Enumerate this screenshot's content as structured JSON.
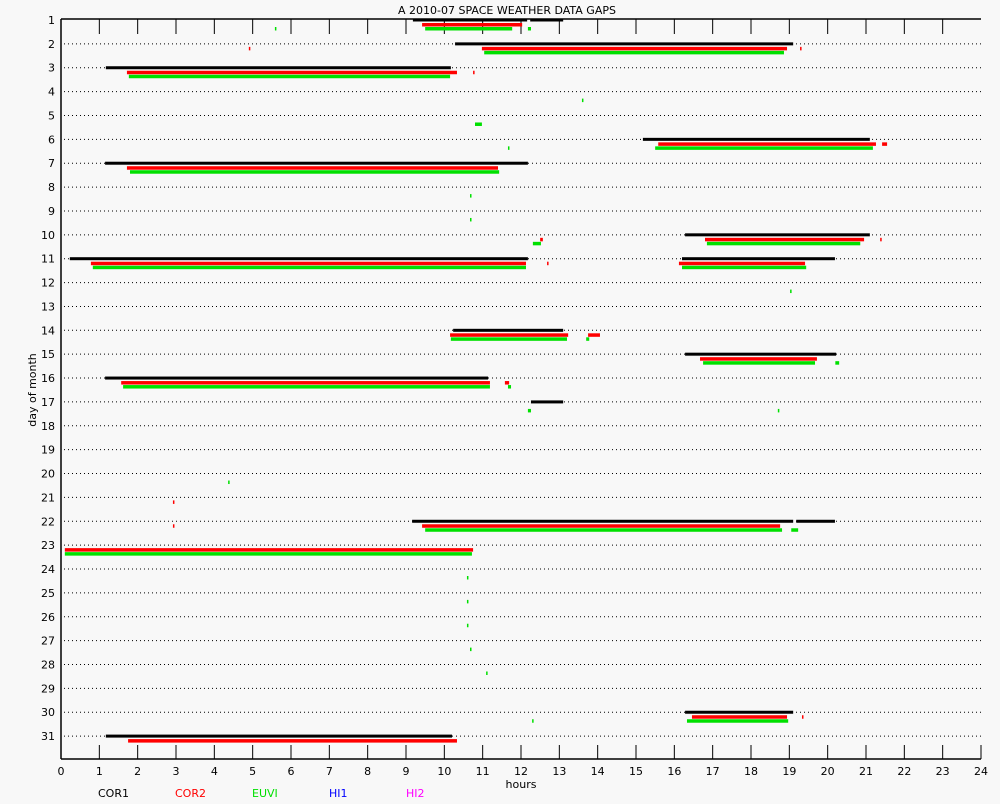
{
  "chart_data": {
    "type": "gantt",
    "title": "A  2010-07 SPACE WEATHER DATA GAPS",
    "xlabel": "hours",
    "ylabel": "day of month",
    "xlim": [
      0,
      24
    ],
    "ylim": [
      1,
      31
    ],
    "x_ticks": [
      0,
      1,
      2,
      3,
      4,
      5,
      6,
      7,
      8,
      9,
      10,
      11,
      12,
      13,
      14,
      15,
      16,
      17,
      18,
      19,
      20,
      21,
      22,
      23,
      24
    ],
    "y_ticks": [
      1,
      2,
      3,
      4,
      5,
      6,
      7,
      8,
      9,
      10,
      11,
      12,
      13,
      14,
      15,
      16,
      17,
      18,
      19,
      20,
      21,
      22,
      23,
      24,
      25,
      26,
      27,
      28,
      29,
      30,
      31
    ],
    "grid": "dotted horizontal",
    "legend_placement": "bottom",
    "series": [
      {
        "name": "COR1",
        "color": "#000000",
        "gaps": [
          [
            1,
            9.18,
            12.16
          ],
          [
            1,
            12.24,
            13.1
          ],
          [
            2,
            10.28,
            19.1
          ],
          [
            3,
            1.17,
            10.17
          ],
          [
            6,
            15.18,
            21.1
          ],
          [
            7,
            1.15,
            12.18
          ],
          [
            10,
            16.28,
            21.1
          ],
          [
            11,
            0.23,
            12.18
          ],
          [
            11,
            16.2,
            20.19
          ],
          [
            14,
            10.23,
            13.1
          ],
          [
            15,
            16.28,
            20.22
          ],
          [
            16,
            1.15,
            11.14
          ],
          [
            17,
            12.26,
            13.1
          ],
          [
            22,
            9.16,
            19.1
          ],
          [
            22,
            19.18,
            20.19
          ],
          [
            30,
            16.28,
            19.1
          ],
          [
            31,
            1.17,
            10.2
          ]
        ]
      },
      {
        "name": "COR2",
        "color": "#ff0000",
        "gaps": [
          [
            1,
            9.42,
            12.03
          ],
          [
            2,
            10.98,
            18.94
          ],
          [
            2,
            4.9,
            4.9
          ],
          [
            2,
            19.28,
            19.28
          ],
          [
            3,
            1.72,
            10.33
          ],
          [
            3,
            10.75,
            10.75
          ],
          [
            6,
            15.58,
            21.26
          ],
          [
            6,
            21.42,
            21.55
          ],
          [
            7,
            1.72,
            11.4
          ],
          [
            10,
            16.8,
            20.95
          ],
          [
            10,
            12.5,
            12.57
          ],
          [
            10,
            21.37,
            21.37
          ],
          [
            11,
            0.78,
            12.13
          ],
          [
            11,
            16.12,
            19.41
          ],
          [
            11,
            12.68,
            12.68
          ],
          [
            14,
            10.15,
            13.23
          ],
          [
            14,
            13.75,
            14.06
          ],
          [
            15,
            16.67,
            19.72
          ],
          [
            16,
            1.57,
            11.19
          ],
          [
            16,
            11.58,
            11.69
          ],
          [
            21,
            2.92,
            2.92
          ],
          [
            22,
            9.42,
            18.76
          ],
          [
            22,
            2.92,
            2.92
          ],
          [
            23,
            0.1,
            10.75
          ],
          [
            30,
            16.46,
            18.94
          ],
          [
            30,
            19.33,
            19.33
          ],
          [
            31,
            1.75,
            10.33
          ]
        ]
      },
      {
        "name": "EUVI",
        "color": "#00e000",
        "gaps": [
          [
            1,
            9.5,
            11.77
          ],
          [
            1,
            12.18,
            12.26
          ],
          [
            1,
            5.58,
            5.58
          ],
          [
            2,
            11.04,
            18.86
          ],
          [
            3,
            1.77,
            10.15
          ],
          [
            4,
            13.59,
            13.59
          ],
          [
            5,
            10.8,
            10.98
          ],
          [
            6,
            15.5,
            21.18
          ],
          [
            6,
            11.66,
            11.66
          ],
          [
            7,
            1.8,
            11.43
          ],
          [
            8,
            10.67,
            10.67
          ],
          [
            9,
            10.67,
            10.67
          ],
          [
            10,
            16.85,
            20.85
          ],
          [
            10,
            12.31,
            12.52
          ],
          [
            11,
            0.83,
            12.13
          ],
          [
            11,
            16.2,
            19.44
          ],
          [
            12,
            19.02,
            19.02
          ],
          [
            14,
            10.17,
            13.2
          ],
          [
            14,
            13.7,
            13.78
          ],
          [
            15,
            16.75,
            19.67
          ],
          [
            15,
            20.2,
            20.3
          ],
          [
            16,
            1.62,
            11.19
          ],
          [
            16,
            11.66,
            11.74
          ],
          [
            17,
            12.18,
            12.26
          ],
          [
            17,
            18.7,
            18.7
          ],
          [
            20,
            4.36,
            4.36
          ],
          [
            22,
            9.5,
            18.81
          ],
          [
            22,
            19.05,
            19.23
          ],
          [
            23,
            0.1,
            10.72
          ],
          [
            24,
            10.59,
            10.59
          ],
          [
            25,
            10.59,
            10.59
          ],
          [
            26,
            10.59,
            10.59
          ],
          [
            27,
            10.67,
            10.67
          ],
          [
            28,
            11.09,
            11.09
          ],
          [
            30,
            16.33,
            18.97
          ],
          [
            30,
            12.29,
            12.29
          ]
        ]
      },
      {
        "name": "HI1",
        "color": "#0000ff",
        "gaps": []
      },
      {
        "name": "HI2",
        "color": "#ff00ff",
        "gaps": []
      }
    ]
  }
}
